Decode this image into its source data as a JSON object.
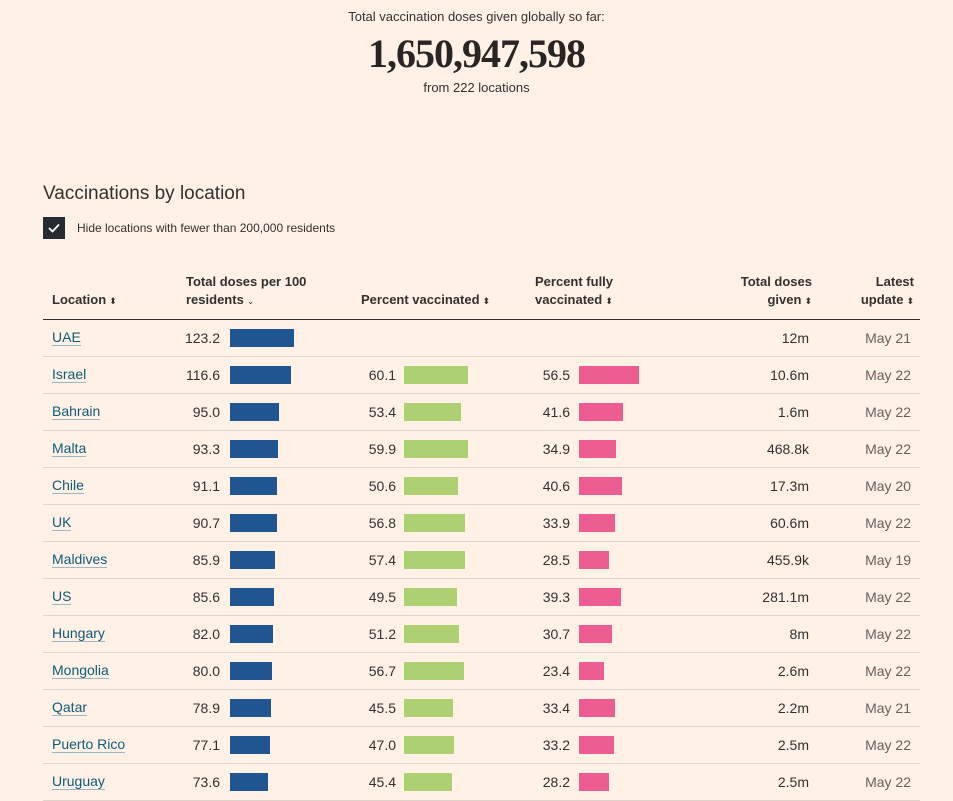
{
  "header": {
    "label": "Total vaccination doses given globally so far:",
    "total": "1,650,947,598",
    "subtitle": "from 222 locations"
  },
  "section": {
    "title": "Vaccinations by location",
    "filter_label": "Hide locations with fewer than 200,000 residents",
    "filter_checked": true
  },
  "columns": {
    "location": "Location",
    "doses_line1": "Total doses per 100",
    "doses_line2": "residents",
    "pv": "Percent vaccinated",
    "pfv_line1": "Percent fully",
    "pfv_line2": "vaccinated",
    "total_line1": "Total doses",
    "total_line2": "given",
    "update_line1": "Latest",
    "update_line2": "update"
  },
  "colors": {
    "doses_bar": "#1f5591",
    "pv_bar": "#acd072",
    "pfv_bar": "#ee5d92",
    "background": "#fff1e5"
  },
  "rows": [
    {
      "location": "UAE",
      "doses": "123.2",
      "doses_value": 123.2,
      "pv": "",
      "pv_value": null,
      "pfv": "",
      "pfv_value": null,
      "total": "12m",
      "update": "May 21"
    },
    {
      "location": "Israel",
      "doses": "116.6",
      "doses_value": 116.6,
      "pv": "60.1",
      "pv_value": 60.1,
      "pfv": "56.5",
      "pfv_value": 56.5,
      "total": "10.6m",
      "update": "May 22"
    },
    {
      "location": "Bahrain",
      "doses": "95.0",
      "doses_value": 95.0,
      "pv": "53.4",
      "pv_value": 53.4,
      "pfv": "41.6",
      "pfv_value": 41.6,
      "total": "1.6m",
      "update": "May 22"
    },
    {
      "location": "Malta",
      "doses": "93.3",
      "doses_value": 93.3,
      "pv": "59.9",
      "pv_value": 59.9,
      "pfv": "34.9",
      "pfv_value": 34.9,
      "total": "468.8k",
      "update": "May 22"
    },
    {
      "location": "Chile",
      "doses": "91.1",
      "doses_value": 91.1,
      "pv": "50.6",
      "pv_value": 50.6,
      "pfv": "40.6",
      "pfv_value": 40.6,
      "total": "17.3m",
      "update": "May 20"
    },
    {
      "location": "UK",
      "doses": "90.7",
      "doses_value": 90.7,
      "pv": "56.8",
      "pv_value": 56.8,
      "pfv": "33.9",
      "pfv_value": 33.9,
      "total": "60.6m",
      "update": "May 22"
    },
    {
      "location": "Maldives",
      "doses": "85.9",
      "doses_value": 85.9,
      "pv": "57.4",
      "pv_value": 57.4,
      "pfv": "28.5",
      "pfv_value": 28.5,
      "total": "455.9k",
      "update": "May 19"
    },
    {
      "location": "US",
      "doses": "85.6",
      "doses_value": 85.6,
      "pv": "49.5",
      "pv_value": 49.5,
      "pfv": "39.3",
      "pfv_value": 39.3,
      "total": "281.1m",
      "update": "May 22"
    },
    {
      "location": "Hungary",
      "doses": "82.0",
      "doses_value": 82.0,
      "pv": "51.2",
      "pv_value": 51.2,
      "pfv": "30.7",
      "pfv_value": 30.7,
      "total": "8m",
      "update": "May 22"
    },
    {
      "location": "Mongolia",
      "doses": "80.0",
      "doses_value": 80.0,
      "pv": "56.7",
      "pv_value": 56.7,
      "pfv": "23.4",
      "pfv_value": 23.4,
      "total": "2.6m",
      "update": "May 22"
    },
    {
      "location": "Qatar",
      "doses": "78.9",
      "doses_value": 78.9,
      "pv": "45.5",
      "pv_value": 45.5,
      "pfv": "33.4",
      "pfv_value": 33.4,
      "total": "2.2m",
      "update": "May 21"
    },
    {
      "location": "Puerto Rico",
      "doses": "77.1",
      "doses_value": 77.1,
      "pv": "47.0",
      "pv_value": 47.0,
      "pfv": "33.2",
      "pfv_value": 33.2,
      "total": "2.5m",
      "update": "May 22"
    },
    {
      "location": "Uruguay",
      "doses": "73.6",
      "doses_value": 73.6,
      "pv": "45.4",
      "pv_value": 45.4,
      "pfv": "28.2",
      "pfv_value": 28.2,
      "total": "2.5m",
      "update": "May 22"
    }
  ]
}
